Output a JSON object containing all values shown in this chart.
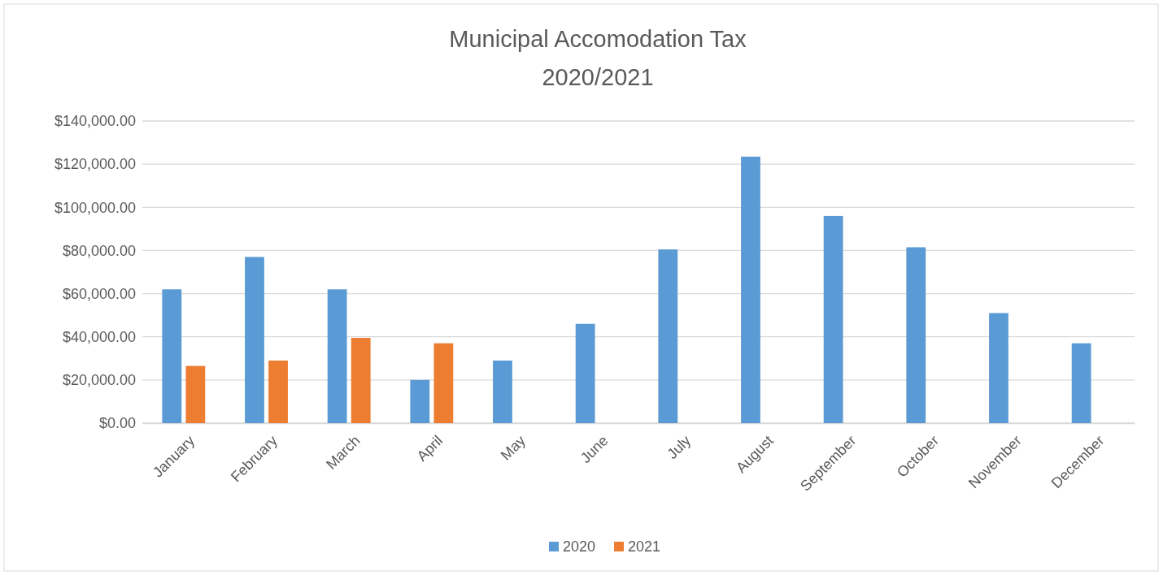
{
  "chart_data": {
    "type": "bar",
    "title": "Municipal Accomodation Tax\n2020/2021",
    "categories": [
      "January",
      "February",
      "March",
      "April",
      "May",
      "June",
      "July",
      "August",
      "September",
      "October",
      "November",
      "December"
    ],
    "series": [
      {
        "name": "2020",
        "color": "#5b9bd5",
        "values": [
          62000,
          77000,
          62000,
          20000,
          29000,
          46000,
          80500,
          123500,
          96000,
          81500,
          51000,
          37000
        ]
      },
      {
        "name": "2021",
        "color": "#ed7d31",
        "values": [
          26500,
          29000,
          39500,
          37000,
          null,
          null,
          null,
          null,
          null,
          null,
          null,
          null
        ]
      }
    ],
    "ylim": [
      0,
      140000
    ],
    "yticks": [
      {
        "value": 0,
        "label": "$0.00"
      },
      {
        "value": 20000,
        "label": "$20,000.00"
      },
      {
        "value": 40000,
        "label": "$40,000.00"
      },
      {
        "value": 60000,
        "label": "$60,000.00"
      },
      {
        "value": 80000,
        "label": "$80,000.00"
      },
      {
        "value": 100000,
        "label": "$100,000.00"
      },
      {
        "value": 120000,
        "label": "$120,000.00"
      },
      {
        "value": 140000,
        "label": "$140,000.00"
      }
    ],
    "grid": "y",
    "legend": "bottom"
  }
}
